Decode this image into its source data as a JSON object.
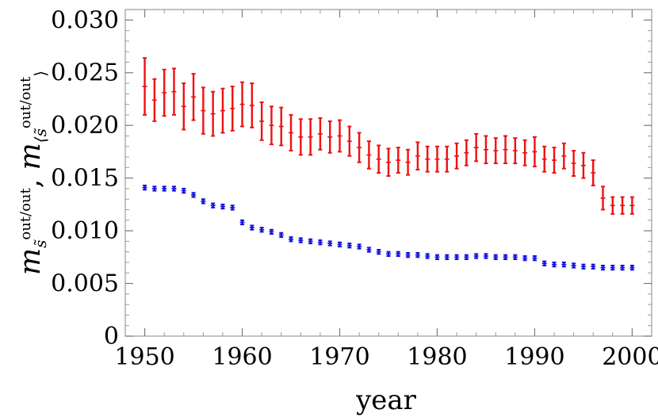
{
  "chart_data": {
    "type": "scatter",
    "xlabel": "year",
    "ylabel": {
      "base1": "m",
      "sub1": "s̃",
      "sup1": "out/out",
      "sep": ", ",
      "base2": "m",
      "sub2": "⟨s̃",
      "sup2": "out/out",
      "close2": "⟩"
    },
    "xlim": [
      1948,
      2002
    ],
    "ylim": [
      0,
      0.031
    ],
    "x_ticks": [
      1950,
      1960,
      1970,
      1980,
      1990,
      2000
    ],
    "y_ticks": [
      0,
      0.005,
      0.01,
      0.015,
      0.02,
      0.025,
      0.03
    ],
    "y_tick_labels": [
      "0",
      "0.005",
      "0.010",
      "0.015",
      "0.020",
      "0.025",
      "0.030"
    ],
    "grid": false,
    "series": [
      {
        "color": "#ee1111",
        "x": [
          1950,
          1951,
          1952,
          1953,
          1954,
          1955,
          1956,
          1957,
          1958,
          1959,
          1960,
          1961,
          1962,
          1963,
          1964,
          1965,
          1966,
          1967,
          1968,
          1969,
          1970,
          1971,
          1972,
          1973,
          1974,
          1975,
          1976,
          1977,
          1978,
          1979,
          1980,
          1981,
          1982,
          1983,
          1984,
          1985,
          1986,
          1987,
          1988,
          1989,
          1990,
          1991,
          1992,
          1993,
          1994,
          1995,
          1996,
          1997,
          1998,
          1999,
          2000
        ],
        "values": [
          0.0237,
          0.0224,
          0.0231,
          0.0232,
          0.0218,
          0.0227,
          0.0214,
          0.0211,
          0.0214,
          0.0216,
          0.022,
          0.0219,
          0.0204,
          0.02,
          0.0199,
          0.0193,
          0.0189,
          0.0189,
          0.0192,
          0.0189,
          0.019,
          0.0185,
          0.0179,
          0.0172,
          0.0168,
          0.0165,
          0.0167,
          0.0165,
          0.0171,
          0.0168,
          0.0168,
          0.0168,
          0.0171,
          0.0174,
          0.0179,
          0.0177,
          0.0176,
          0.0177,
          0.0176,
          0.0174,
          0.0175,
          0.0168,
          0.0167,
          0.0171,
          0.0164,
          0.0162,
          0.0155,
          0.0131,
          0.0124,
          0.0124,
          0.0124
        ],
        "error": [
          0.0027,
          0.002,
          0.0022,
          0.0022,
          0.0022,
          0.0022,
          0.0022,
          0.0021,
          0.0021,
          0.0021,
          0.0021,
          0.0021,
          0.0018,
          0.0018,
          0.0018,
          0.0017,
          0.0017,
          0.0017,
          0.0015,
          0.0015,
          0.0015,
          0.0014,
          0.0014,
          0.0013,
          0.0013,
          0.0013,
          0.0012,
          0.0012,
          0.0013,
          0.0012,
          0.0012,
          0.0012,
          0.0012,
          0.0012,
          0.0013,
          0.0013,
          0.0012,
          0.0013,
          0.0012,
          0.0012,
          0.0014,
          0.0012,
          0.0012,
          0.0012,
          0.0012,
          0.0012,
          0.0012,
          0.0011,
          0.0008,
          0.0008,
          0.0008
        ]
      },
      {
        "color": "#1111dd",
        "x": [
          1950,
          1951,
          1952,
          1953,
          1954,
          1955,
          1956,
          1957,
          1958,
          1959,
          1960,
          1961,
          1962,
          1963,
          1964,
          1965,
          1966,
          1967,
          1968,
          1969,
          1970,
          1971,
          1972,
          1973,
          1974,
          1975,
          1976,
          1977,
          1978,
          1979,
          1980,
          1981,
          1982,
          1983,
          1984,
          1985,
          1986,
          1987,
          1988,
          1989,
          1990,
          1991,
          1992,
          1993,
          1994,
          1995,
          1996,
          1997,
          1998,
          1999,
          2000
        ],
        "values": [
          0.0141,
          0.014,
          0.014,
          0.014,
          0.0138,
          0.0134,
          0.0128,
          0.0124,
          0.0123,
          0.0122,
          0.0108,
          0.0103,
          0.0101,
          0.0099,
          0.0096,
          0.0092,
          0.0091,
          0.009,
          0.0089,
          0.0088,
          0.0087,
          0.0086,
          0.0085,
          0.0082,
          0.008,
          0.0078,
          0.0078,
          0.0077,
          0.0077,
          0.0076,
          0.0075,
          0.0075,
          0.0075,
          0.0075,
          0.0076,
          0.0076,
          0.0075,
          0.0075,
          0.0075,
          0.0074,
          0.0074,
          0.0069,
          0.0068,
          0.0068,
          0.0067,
          0.0066,
          0.0066,
          0.0065,
          0.0065,
          0.0065,
          0.0065
        ],
        "error": [
          0.0002,
          0.0002,
          0.0002,
          0.0002,
          0.0002,
          0.0002,
          0.0002,
          0.0002,
          0.0002,
          0.0002,
          0.0002,
          0.0002,
          0.0002,
          0.0002,
          0.0002,
          0.0002,
          0.0002,
          0.0002,
          0.0002,
          0.0002,
          0.0002,
          0.0002,
          0.0002,
          0.0002,
          0.0002,
          0.0002,
          0.0002,
          0.0002,
          0.0002,
          0.0002,
          0.0002,
          0.0002,
          0.0002,
          0.0002,
          0.0002,
          0.0002,
          0.0002,
          0.0002,
          0.0002,
          0.0002,
          0.0002,
          0.0002,
          0.0002,
          0.0002,
          0.0002,
          0.0002,
          0.0002,
          0.0002,
          0.0002,
          0.0002,
          0.0002
        ]
      }
    ]
  }
}
